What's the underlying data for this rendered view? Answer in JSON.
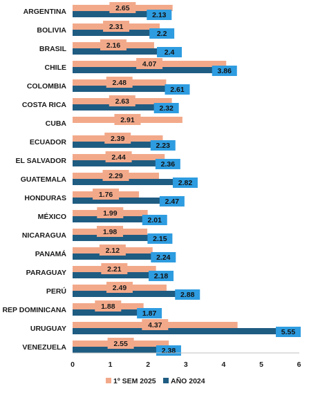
{
  "chart_data": {
    "type": "bar",
    "orientation": "horizontal",
    "categories": [
      "ARGENTINA",
      "BOLIVIA",
      "BRASIL",
      "CHILE",
      "COLOMBIA",
      "COSTA RICA",
      "CUBA",
      "ECUADOR",
      "EL SALVADOR",
      "GUATEMALA",
      "HONDURAS",
      "MÉXICO",
      "NICARAGUA",
      "PANAMÁ",
      "PARAGUAY",
      "PERÚ",
      "REP DOMINICANA",
      "URUGUAY",
      "VENEZUELA"
    ],
    "series": [
      {
        "name": "1º SEM 2025",
        "color": "#F2A98A",
        "label_bg": "#F2A98A",
        "values": [
          2.65,
          2.31,
          2.16,
          4.07,
          2.48,
          2.63,
          2.91,
          2.39,
          2.44,
          2.29,
          1.76,
          1.99,
          1.98,
          2.12,
          2.21,
          2.49,
          1.88,
          4.37,
          2.55
        ],
        "labels": [
          "2.65",
          "2.31",
          "2.16",
          "4.07",
          "2.48",
          "2.63",
          "2.91",
          "2.39",
          "2.44",
          "2.29",
          "1.76",
          "1.99",
          "1.98",
          "2.12",
          "2.21",
          "2.49",
          "1.88",
          "4.37",
          "2.55"
        ]
      },
      {
        "name": "AÑO 2024",
        "color": "#1F5C82",
        "label_bg": "#2E9CE0",
        "values": [
          2.13,
          2.2,
          2.4,
          3.86,
          2.61,
          2.32,
          null,
          2.23,
          2.36,
          2.82,
          2.47,
          2.01,
          2.15,
          2.24,
          2.18,
          2.88,
          1.87,
          5.55,
          2.38
        ],
        "labels": [
          "2.13",
          "2.2",
          "2.4",
          "3.86",
          "2.61",
          "2.32",
          "",
          "2.23",
          "2.36",
          "2.82",
          "2.47",
          "2.01",
          "2.15",
          "2.24",
          "2.18",
          "2.88",
          "1.87",
          "5.55",
          "2.38"
        ]
      }
    ],
    "xlim": [
      0,
      6
    ],
    "xticks": [
      "0",
      "1",
      "2",
      "3",
      "4",
      "5",
      "6"
    ],
    "grid": false,
    "legend_position": "bottom-center",
    "title": "",
    "xlabel": "",
    "ylabel": ""
  }
}
